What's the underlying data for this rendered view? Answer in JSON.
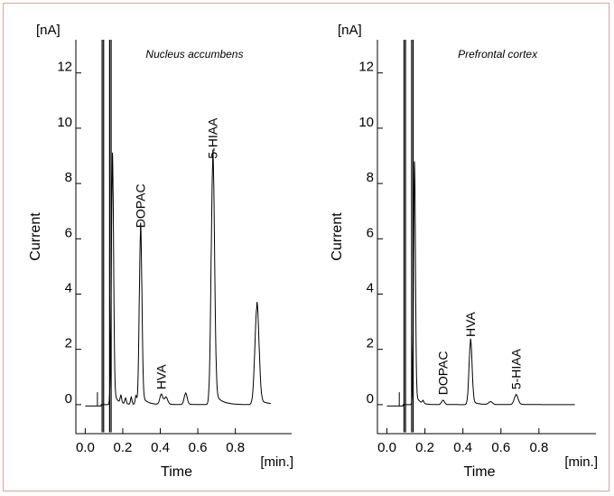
{
  "figure": {
    "background": "#ffffff",
    "border_color": "#d9a4a4",
    "trace_color": "#000000"
  },
  "chart_data": [
    {
      "type": "line",
      "title": "Nucleus accumbens",
      "xlabel": "Time",
      "ylabel": "Current",
      "x_unit": "[min.]",
      "y_unit": "[nA]",
      "xlim": [
        -0.05,
        1.1
      ],
      "ylim": [
        -1.05,
        13.2
      ],
      "x_ticks": [
        "0.0",
        "0.2",
        "0.4",
        "0.6",
        "0.8"
      ],
      "y_ticks": [
        "0",
        "2",
        "4",
        "6",
        "8",
        "10",
        "12"
      ],
      "baseline": 0.0,
      "injection_spikes": [
        {
          "x": 0.09,
          "y_top": 13.2
        },
        {
          "x": 0.13,
          "y_top": 13.2
        }
      ],
      "peaks": [
        {
          "name": "",
          "x": 0.145,
          "height": 8.6,
          "width": 0.006
        },
        {
          "name": "DOPAC",
          "x": 0.295,
          "height": 6.2,
          "width": 0.007
        },
        {
          "name": "HVA",
          "x": 0.405,
          "height": 0.35,
          "width": 0.008
        },
        {
          "name": "",
          "x": 0.43,
          "height": 0.25,
          "width": 0.009
        },
        {
          "name": "",
          "x": 0.535,
          "height": 0.4,
          "width": 0.008
        },
        {
          "name": "5-HIAA",
          "x": 0.68,
          "height": 8.7,
          "width": 0.009
        },
        {
          "name": "",
          "x": 0.915,
          "height": 3.5,
          "width": 0.011
        }
      ],
      "small_peaks": [
        {
          "x": 0.19,
          "height": 0.25
        },
        {
          "x": 0.215,
          "height": 0.2
        },
        {
          "x": 0.245,
          "height": 0.25
        },
        {
          "x": 0.27,
          "height": 0.3
        }
      ]
    },
    {
      "type": "line",
      "title": "Prefrontal cortex",
      "xlabel": "Time",
      "ylabel": "Current",
      "x_unit": "[min.]",
      "y_unit": "[nA]",
      "xlim": [
        -0.05,
        1.1
      ],
      "ylim": [
        -1.05,
        13.2
      ],
      "x_ticks": [
        "0.0",
        "0.2",
        "0.4",
        "0.6",
        "0.8"
      ],
      "y_ticks": [
        "0",
        "2",
        "4",
        "6",
        "8",
        "10",
        "12"
      ],
      "baseline": 0.0,
      "injection_spikes": [
        {
          "x": 0.09,
          "y_top": 13.2
        },
        {
          "x": 0.13,
          "y_top": 13.2
        }
      ],
      "peaks": [
        {
          "name": "",
          "x": 0.145,
          "height": 8.3,
          "width": 0.005
        },
        {
          "name": "DOPAC",
          "x": 0.295,
          "height": 0.15,
          "width": 0.008
        },
        {
          "name": "HVA",
          "x": 0.44,
          "height": 2.25,
          "width": 0.008
        },
        {
          "name": "",
          "x": 0.545,
          "height": 0.1,
          "width": 0.01
        },
        {
          "name": "5-HIAA",
          "x": 0.68,
          "height": 0.35,
          "width": 0.01
        }
      ],
      "small_peaks": [
        {
          "x": 0.19,
          "height": 0.1
        }
      ]
    }
  ]
}
